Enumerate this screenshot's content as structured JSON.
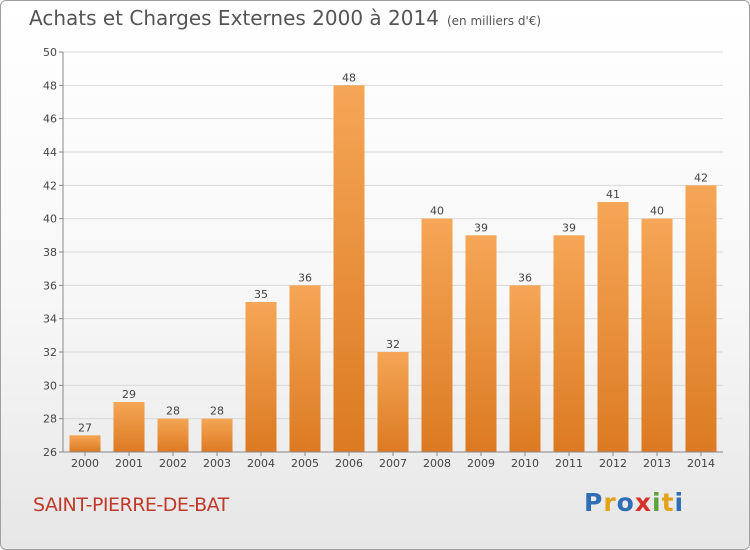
{
  "header": {
    "title": "Achats et Charges Externes 2000 à 2014",
    "unit": "(en milliers d'€)"
  },
  "footer": {
    "town": "SAINT-PIERRE-DE-BAT",
    "logo_letters": [
      "P",
      "r",
      "o",
      "x",
      "i",
      "t",
      "i"
    ],
    "logo_colors": [
      "#2f6db5",
      "#e2a21a",
      "#2f6db5",
      "#d6322b",
      "#5aa43a",
      "#e2a21a",
      "#2f6db5"
    ]
  },
  "colors": {
    "bar_light": "#f5a656",
    "bar_dark": "#dc7a22",
    "grid": "#d9d9d9",
    "title": "#555555",
    "town": "#c0392b"
  },
  "chart_data": {
    "type": "bar",
    "title": "Achats et Charges Externes 2000 à 2014",
    "subtitle": "(en milliers d'€)",
    "xlabel": "",
    "ylabel": "",
    "categories": [
      "2000",
      "2001",
      "2002",
      "2003",
      "2004",
      "2005",
      "2006",
      "2007",
      "2008",
      "2009",
      "2010",
      "2011",
      "2012",
      "2013",
      "2014"
    ],
    "values": [
      27,
      29,
      28,
      28,
      35,
      36,
      48,
      32,
      40,
      39,
      36,
      39,
      41,
      40,
      42
    ],
    "ylim": [
      26,
      50
    ],
    "yticks": [
      26,
      28,
      30,
      32,
      34,
      36,
      38,
      40,
      42,
      44,
      46,
      48,
      50
    ],
    "grid": true,
    "legend": "none"
  }
}
